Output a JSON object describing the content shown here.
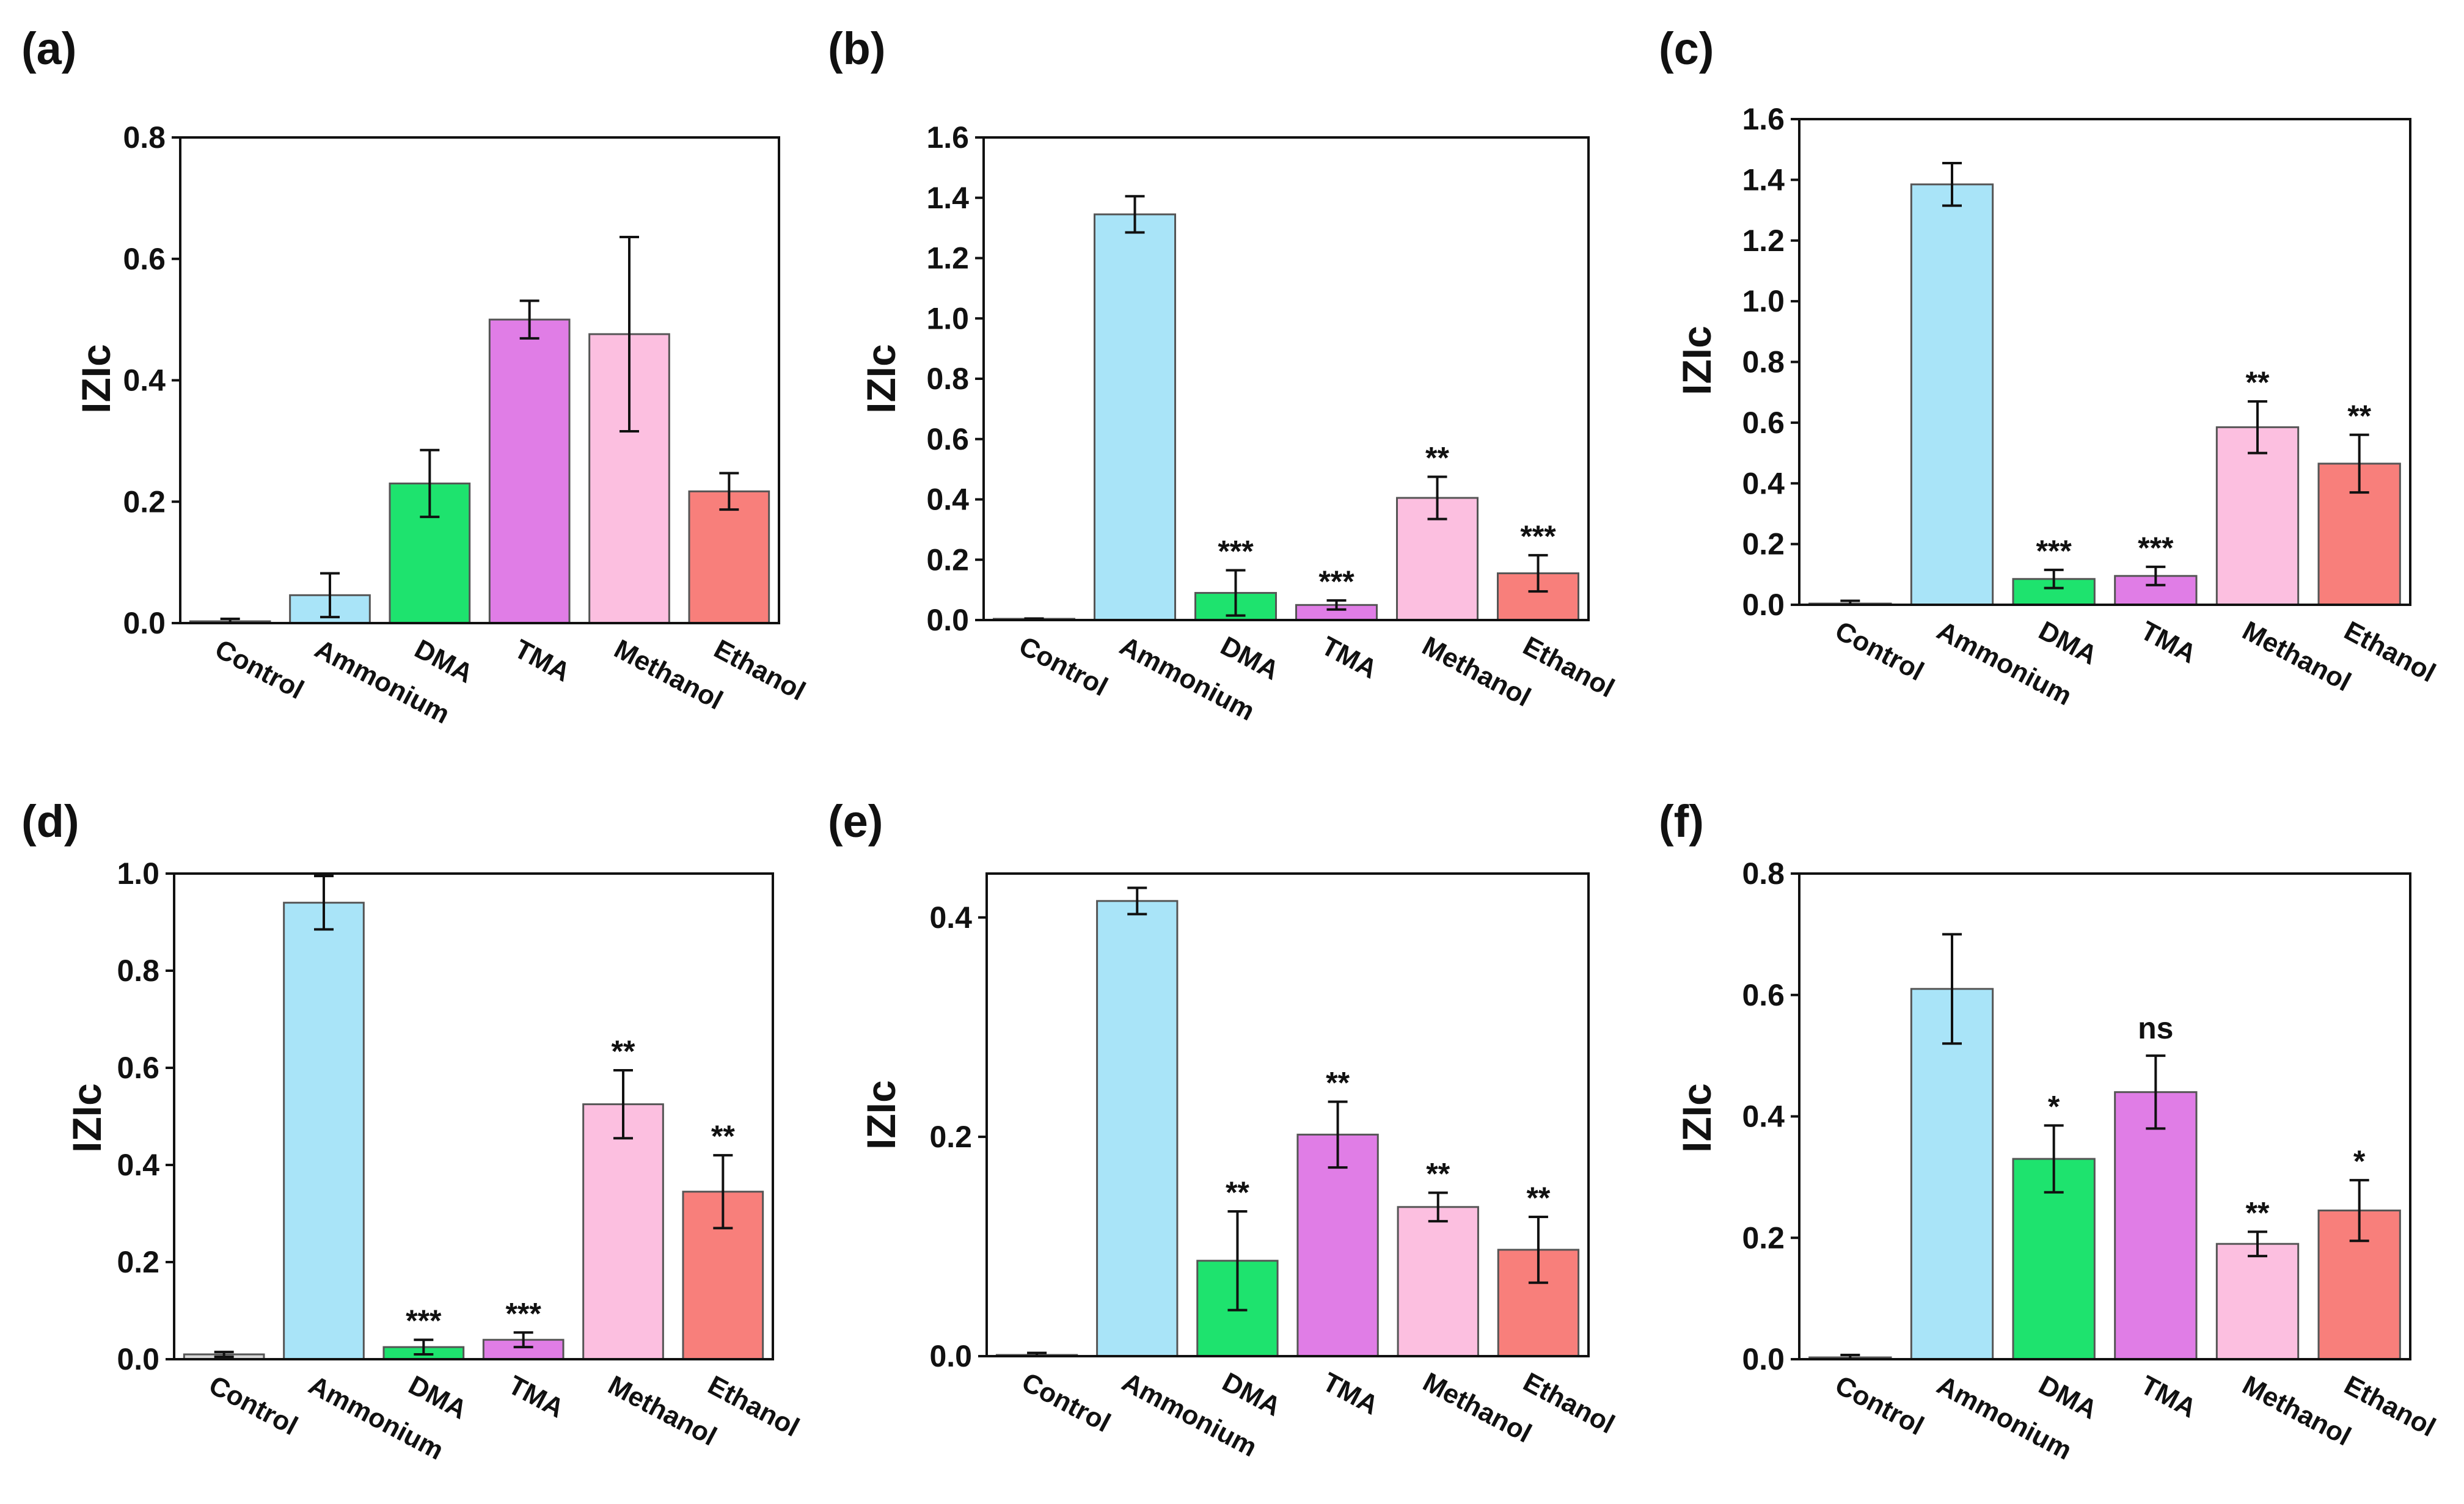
{
  "figure": {
    "panels": [
      "(a)",
      "(b)",
      "(c)",
      "(d)",
      "(e)",
      "(f)"
    ]
  },
  "chart_data": [
    {
      "panel": "(a)",
      "type": "bar",
      "ylabel": "IZIc",
      "xlabel": "",
      "categories": [
        "Control",
        "Ammonium",
        "DMA",
        "TMA",
        "Methanol",
        "Ethanol"
      ],
      "values": [
        0.003,
        0.046,
        0.23,
        0.5,
        0.476,
        0.217
      ],
      "errors": [
        0.004,
        0.036,
        0.055,
        0.031,
        0.16,
        0.03
      ],
      "significance": [
        "",
        "",
        "",
        "",
        "",
        ""
      ],
      "ylim": [
        0,
        0.8
      ],
      "yticks": [
        "0.0",
        "0.2",
        "0.4",
        "0.6",
        "0.8"
      ]
    },
    {
      "panel": "(b)",
      "type": "bar",
      "ylabel": "IZIc",
      "xlabel": "",
      "categories": [
        "Control",
        "Ammonium",
        "DMA",
        "TMA",
        "Methanol",
        "Ethanol"
      ],
      "values": [
        0.002,
        1.345,
        0.09,
        0.05,
        0.405,
        0.155
      ],
      "errors": [
        0.003,
        0.06,
        0.075,
        0.015,
        0.07,
        0.06
      ],
      "significance": [
        "",
        "",
        "***",
        "***",
        "**",
        "***"
      ],
      "ylim": [
        0,
        1.6
      ],
      "yticks": [
        "0.0",
        "0.2",
        "0.4",
        "0.6",
        "0.8",
        "1.0",
        "1.2",
        "1.4",
        "1.6"
      ]
    },
    {
      "panel": "(c)",
      "type": "bar",
      "ylabel": "IZIc",
      "xlabel": "",
      "categories": [
        "Control",
        "Ammonium",
        "DMA",
        "TMA",
        "Methanol",
        "Ethanol"
      ],
      "values": [
        0.003,
        1.385,
        0.085,
        0.095,
        0.585,
        0.465
      ],
      "errors": [
        0.01,
        0.07,
        0.03,
        0.03,
        0.085,
        0.095
      ],
      "significance": [
        "",
        "",
        "***",
        "***",
        "**",
        "**"
      ],
      "ylim": [
        0,
        1.6
      ],
      "yticks": [
        "0.0",
        "0.2",
        "0.4",
        "0.6",
        "0.8",
        "1.0",
        "1.2",
        "1.4",
        "1.6"
      ]
    },
    {
      "panel": "(d)",
      "type": "bar",
      "ylabel": "IZIc",
      "xlabel": "",
      "categories": [
        "Control",
        "Ammonium",
        "DMA",
        "TMA",
        "Methanol",
        "Ethanol"
      ],
      "values": [
        0.01,
        0.94,
        0.025,
        0.04,
        0.525,
        0.345
      ],
      "errors": [
        0.005,
        0.055,
        0.015,
        0.015,
        0.07,
        0.075
      ],
      "significance": [
        "",
        "",
        "***",
        "***",
        "**",
        "**"
      ],
      "ylim": [
        0,
        1.0
      ],
      "yticks": [
        "0.0",
        "0.2",
        "0.4",
        "0.6",
        "0.8",
        "1.0"
      ]
    },
    {
      "panel": "(e)",
      "type": "bar",
      "ylabel": "IZIc",
      "xlabel": "",
      "categories": [
        "Control",
        "Ammonium",
        "DMA",
        "TMA",
        "Methanol",
        "Ethanol"
      ],
      "values": [
        0.001,
        0.415,
        0.087,
        0.202,
        0.136,
        0.097
      ],
      "errors": [
        0.002,
        0.012,
        0.045,
        0.03,
        0.013,
        0.03
      ],
      "significance": [
        "",
        "",
        "**",
        "**",
        "**",
        "**"
      ],
      "ylim": [
        0,
        0.44
      ],
      "yticks": [
        "0.0",
        "0.2",
        "0.4"
      ]
    },
    {
      "panel": "(f)",
      "type": "bar",
      "ylabel": "IZIc",
      "xlabel": "",
      "categories": [
        "Control",
        "Ammonium",
        "DMA",
        "TMA",
        "Methanol",
        "Ethanol"
      ],
      "values": [
        0.003,
        0.61,
        0.33,
        0.44,
        0.19,
        0.245
      ],
      "errors": [
        0.004,
        0.09,
        0.055,
        0.06,
        0.02,
        0.05
      ],
      "significance": [
        "",
        "",
        "*",
        "ns",
        "**",
        "*"
      ],
      "ylim": [
        0,
        0.8
      ],
      "yticks": [
        "0.0",
        "0.2",
        "0.4",
        "0.6",
        "0.8"
      ]
    }
  ],
  "colors": {
    "Control": "#d9d9d9",
    "Ammonium": "#a9e4f8",
    "DMA": "#1ee36e",
    "TMA": "#e07de6",
    "Methanol": "#fcbfe0",
    "Ethanol": "#f87f7b",
    "axis": "#111111"
  }
}
